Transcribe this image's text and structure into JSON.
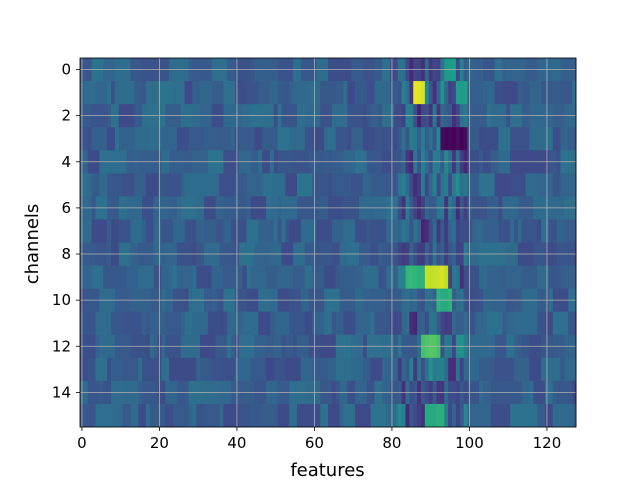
{
  "chart_data": {
    "type": "heatmap",
    "title": "",
    "xlabel": "features",
    "ylabel": "channels",
    "n_rows": 16,
    "n_cols": 128,
    "xlim": [
      -0.5,
      127.5
    ],
    "ylim": [
      15.5,
      -0.5
    ],
    "x_ticks": [
      0,
      20,
      40,
      60,
      80,
      100,
      120
    ],
    "y_ticks": [
      0,
      2,
      4,
      6,
      8,
      10,
      12,
      14
    ],
    "grid": true,
    "colormap": "viridis",
    "background_value": 0.3,
    "hotspots": [
      {
        "row": 1,
        "cols": [
          86,
          88
        ],
        "value": 0.95
      },
      {
        "row": 9,
        "cols": [
          89,
          94
        ],
        "value": 0.92
      },
      {
        "row": 9,
        "cols": [
          84,
          88
        ],
        "value": 0.65
      },
      {
        "row": 12,
        "cols": [
          88,
          92
        ],
        "value": 0.72
      },
      {
        "row": 3,
        "cols": [
          93,
          99
        ],
        "value": 0.02
      },
      {
        "row": 10,
        "cols": [
          92,
          95
        ],
        "value": 0.62
      },
      {
        "row": 15,
        "cols": [
          89,
          93
        ],
        "value": 0.62
      },
      {
        "row": 1,
        "cols": [
          97,
          99
        ],
        "value": 0.55
      },
      {
        "row": 0,
        "cols": [
          94,
          96
        ],
        "value": 0.55
      }
    ]
  }
}
